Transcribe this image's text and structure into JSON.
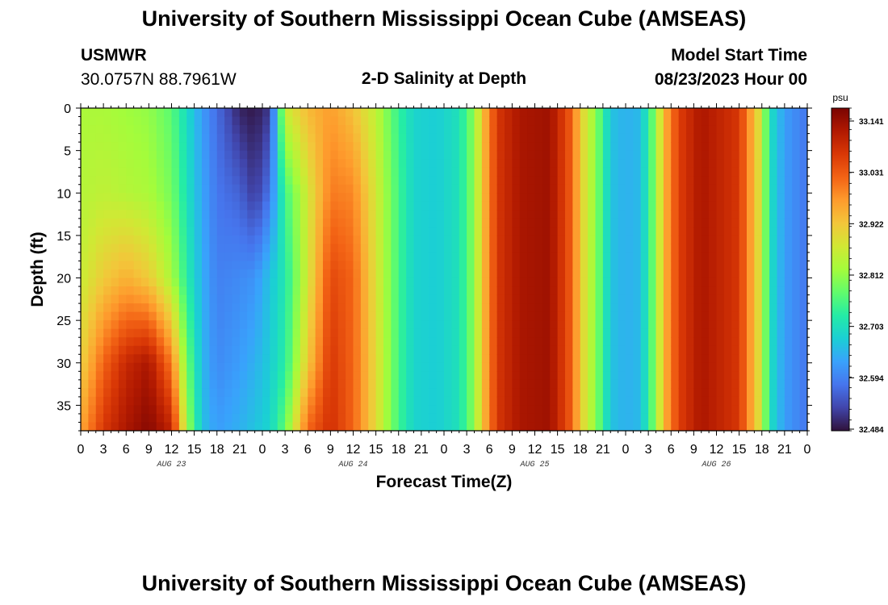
{
  "page": {
    "title": "University of Southern Mississippi Ocean Cube (AMSEAS)",
    "station_id": "USMWR",
    "location": "30.0757N  88.7961W",
    "model_start_label": "Model Start Time",
    "model_start_value": "08/23/2023 Hour 00",
    "bottom_title": "University of Southern Mississippi Ocean Cube (AMSEAS)"
  },
  "chart_data": {
    "type": "heatmap",
    "title": "2-D Salinity at Depth",
    "xlabel": "Forecast Time(Z)",
    "ylabel": "Depth (ft)",
    "x_unit": "hours since 08/23/2023 00Z",
    "xlim": [
      0,
      96
    ],
    "ylim": [
      0,
      38
    ],
    "x_tick_labels": [
      "0",
      "3",
      "6",
      "9",
      "12",
      "15",
      "18",
      "21",
      "0",
      "3",
      "6",
      "9",
      "12",
      "15",
      "18",
      "21",
      "0",
      "3",
      "6",
      "9",
      "12",
      "15",
      "18",
      "21",
      "0",
      "3",
      "6",
      "9",
      "12",
      "15",
      "18",
      "21",
      "0"
    ],
    "y_ticks": [
      0,
      5,
      10,
      15,
      20,
      25,
      30,
      35
    ],
    "date_labels": [
      {
        "label": "AUG 23",
        "hour": 12
      },
      {
        "label": "AUG 24",
        "hour": 36
      },
      {
        "label": "AUG 25",
        "hour": 60
      },
      {
        "label": "AUG 26",
        "hour": 84
      }
    ],
    "colorbar": {
      "unit": "psu",
      "min": 32.484,
      "max": 33.141,
      "tick_labels": [
        "33.141",
        "33.031",
        "32.922",
        "32.812",
        "32.703",
        "32.594",
        "32.484"
      ],
      "colormap": [
        "#30123b",
        "#4145ab",
        "#4675ed",
        "#39a2fc",
        "#1bcfd4",
        "#24eca6",
        "#61fc6c",
        "#a4fc3b",
        "#d1e834",
        "#f3c63a",
        "#fe9b2d",
        "#f36315",
        "#d93806",
        "#b11901",
        "#7a0402"
      ]
    },
    "depth_samples": [
      0,
      10,
      20,
      30,
      38
    ],
    "time_samples_hours": [
      0,
      3,
      6,
      9,
      12,
      14,
      16,
      18,
      21,
      23,
      25,
      27,
      30,
      33,
      36,
      39,
      42,
      44,
      47,
      50,
      52,
      53,
      55,
      58,
      62,
      65,
      66,
      68,
      70,
      72,
      74,
      76,
      77,
      79,
      82,
      87,
      90,
      91,
      93,
      96
    ],
    "salinity_psu": [
      [
        32.82,
        32.83,
        32.85,
        32.89,
        32.94
      ],
      [
        32.82,
        32.84,
        32.9,
        33.0,
        33.05
      ],
      [
        32.81,
        32.83,
        32.93,
        33.07,
        33.1
      ],
      [
        32.8,
        32.82,
        32.9,
        33.1,
        33.13
      ],
      [
        32.76,
        32.78,
        32.82,
        32.98,
        33.08
      ],
      [
        32.69,
        32.7,
        32.72,
        32.78,
        32.82
      ],
      [
        32.62,
        32.63,
        32.64,
        32.65,
        32.66
      ],
      [
        32.57,
        32.58,
        32.59,
        32.6,
        32.62
      ],
      [
        32.5,
        32.56,
        32.6,
        32.62,
        32.64
      ],
      [
        32.49,
        32.52,
        32.61,
        32.64,
        32.66
      ],
      [
        32.52,
        32.58,
        32.66,
        32.67,
        32.68
      ],
      [
        32.85,
        32.74,
        32.71,
        32.72,
        32.77
      ],
      [
        32.92,
        32.86,
        32.86,
        32.9,
        33.0
      ],
      [
        32.95,
        32.98,
        33.03,
        33.05,
        33.06
      ],
      [
        32.91,
        32.97,
        33.0,
        33.0,
        33.0
      ],
      [
        32.84,
        32.86,
        32.87,
        32.88,
        32.88
      ],
      [
        32.73,
        32.74,
        32.74,
        32.74,
        32.74
      ],
      [
        32.68,
        32.68,
        32.68,
        32.68,
        32.68
      ],
      [
        32.67,
        32.67,
        32.67,
        32.67,
        32.67
      ],
      [
        32.7,
        32.7,
        32.7,
        32.7,
        32.7
      ],
      [
        32.8,
        32.8,
        32.8,
        32.8,
        32.8
      ],
      [
        32.9,
        32.9,
        32.9,
        32.9,
        32.9
      ],
      [
        33.05,
        33.05,
        33.05,
        33.05,
        33.05
      ],
      [
        33.1,
        33.1,
        33.1,
        33.1,
        33.1
      ],
      [
        33.11,
        33.11,
        33.11,
        33.11,
        33.11
      ],
      [
        33.0,
        33.0,
        33.0,
        33.0,
        33.0
      ],
      [
        32.9,
        32.9,
        32.9,
        32.9,
        32.9
      ],
      [
        32.8,
        32.8,
        32.8,
        32.8,
        32.8
      ],
      [
        32.66,
        32.66,
        32.66,
        32.66,
        32.66
      ],
      [
        32.64,
        32.64,
        32.64,
        32.64,
        32.64
      ],
      [
        32.65,
        32.65,
        32.65,
        32.65,
        32.65
      ],
      [
        32.8,
        32.8,
        32.8,
        32.8,
        32.8
      ],
      [
        32.92,
        32.92,
        32.92,
        32.92,
        32.92
      ],
      [
        33.04,
        33.04,
        33.04,
        33.04,
        33.04
      ],
      [
        33.1,
        33.1,
        33.1,
        33.1,
        33.1
      ],
      [
        33.05,
        33.05,
        33.05,
        33.05,
        33.05
      ],
      [
        32.85,
        32.85,
        32.85,
        32.85,
        32.85
      ],
      [
        32.7,
        32.7,
        32.7,
        32.7,
        32.7
      ],
      [
        32.62,
        32.62,
        32.62,
        32.62,
        32.62
      ],
      [
        32.58,
        32.58,
        32.58,
        32.58,
        32.58
      ]
    ]
  }
}
